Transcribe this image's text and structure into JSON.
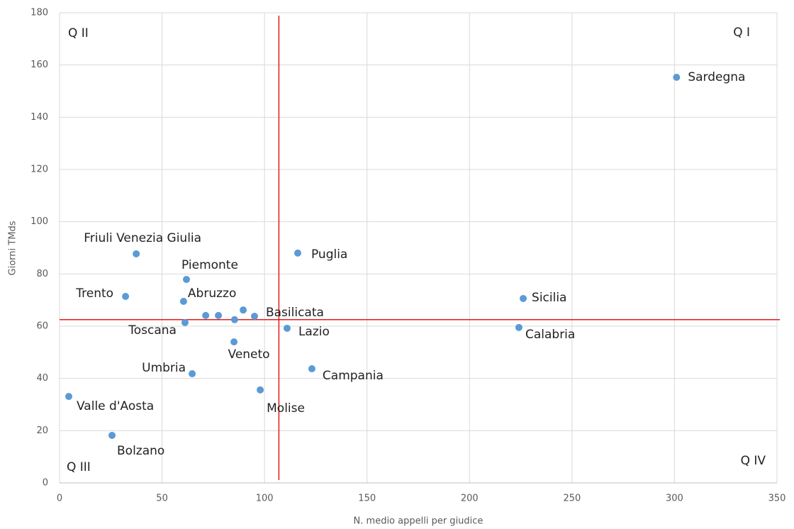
{
  "chart_data": {
    "type": "scatter",
    "x_label": "N. medio appelli per giudice",
    "y_label": "Giorni TMds",
    "labels": [
      "Sardegna",
      "Friuli Venezia Giulia",
      "Puglia",
      "Piemonte",
      "Trento",
      "Abruzzo",
      "Sicilia",
      "Basilicata",
      null,
      null,
      null,
      null,
      "Toscana",
      "Lazio",
      "Calabria",
      "Veneto",
      "Umbria",
      "Campania",
      "Molise",
      "Valle d'Aosta",
      "Bolzano"
    ],
    "x": [
      301,
      37.4,
      116.2,
      61.9,
      32.2,
      60.5,
      226.2,
      95.1,
      71.3,
      77.5,
      85.4,
      89.6,
      61.2,
      111,
      224.1,
      85.1,
      64.7,
      123.1,
      97.9,
      4.5,
      25.6
    ],
    "y": [
      155.3,
      87.7,
      88,
      77.9,
      71.4,
      69.5,
      70.6,
      63.8,
      64.1,
      64.1,
      62.5,
      66.2,
      61.4,
      59.2,
      59.5,
      54,
      41.8,
      43.7,
      35.6,
      33.1,
      18.2
    ],
    "color": "#5b9bd5",
    "ref_x": 107,
    "ref_y": 62.5,
    "ref_color": "#e8191c",
    "quadrants": [
      "Q I",
      "Q II",
      "Q III",
      "Q IV"
    ],
    "xlim": [
      0,
      350
    ],
    "xticks": [
      0,
      50,
      100,
      150,
      200,
      250,
      300,
      350
    ],
    "ylim": [
      0,
      180
    ],
    "yticks": [
      0,
      20,
      40,
      60,
      80,
      100,
      120,
      140,
      160,
      180
    ],
    "grid": true
  }
}
